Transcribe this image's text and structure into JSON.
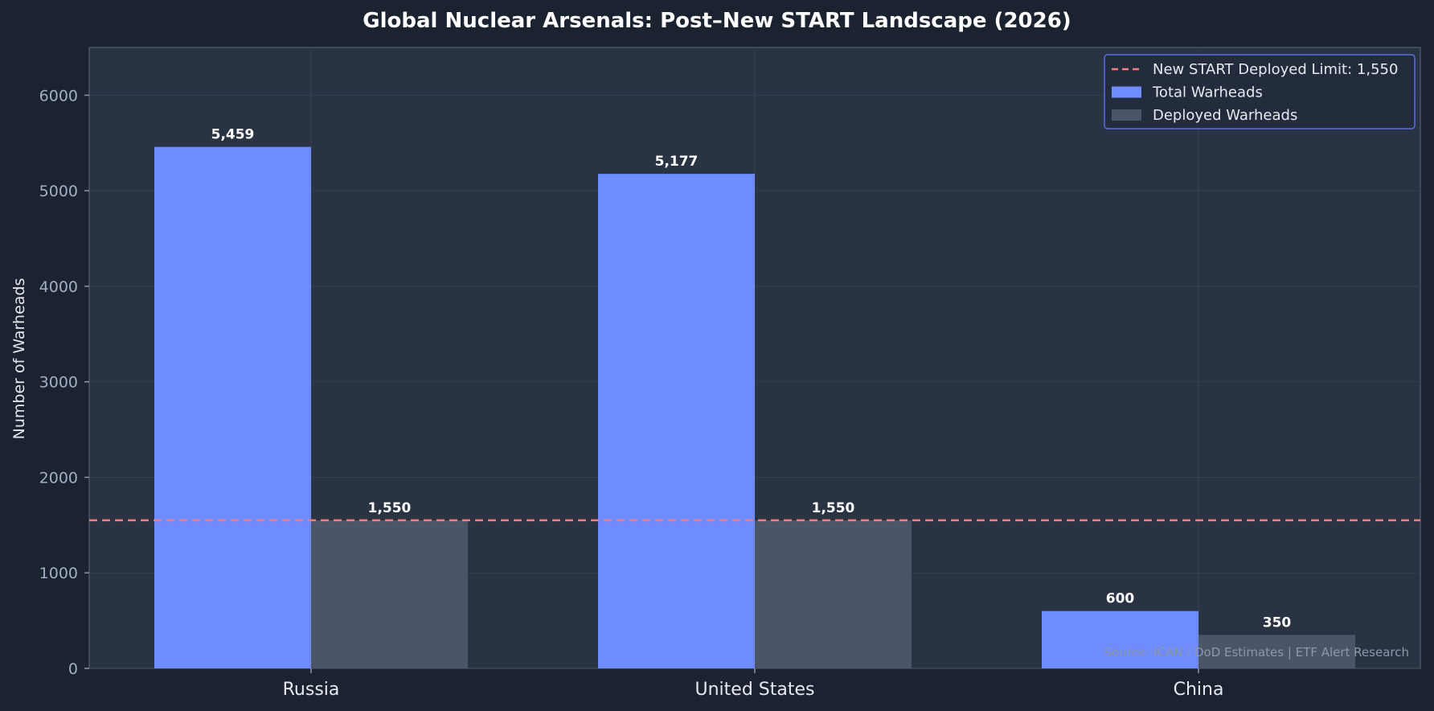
{
  "chart_data": {
    "type": "bar",
    "title": "Global Nuclear Arsenals: Post–New START Landscape (2026)",
    "xlabel": "",
    "ylabel": "Number of Warheads",
    "categories": [
      "Russia",
      "United States",
      "China"
    ],
    "series": [
      {
        "name": "Total Warheads",
        "values": [
          5459,
          5177,
          600
        ],
        "labels": [
          "5,459",
          "5,177",
          "600"
        ],
        "color": "#6e8bff"
      },
      {
        "name": "Deployed Warheads",
        "values": [
          1550,
          1550,
          350
        ],
        "labels": [
          "1,550",
          "1,550",
          "350"
        ],
        "color": "#4a5568"
      }
    ],
    "reference_line": {
      "name": "New START Deployed Limit: 1,550",
      "value": 1550,
      "color": "#f47c7c",
      "style": "dashed"
    },
    "ylim": [
      0,
      6500
    ],
    "yticks": [
      0,
      1000,
      2000,
      3000,
      4000,
      5000,
      6000
    ],
    "grid": true,
    "legend_position": "top-right",
    "source": "Source: ICAN / DoD Estimates | ETF Alert Research",
    "colors": {
      "figure_bg": "#1b2230",
      "plot_bg": "#2a3344",
      "legend_border": "#5b6ee1",
      "grid": "#36404f"
    }
  }
}
